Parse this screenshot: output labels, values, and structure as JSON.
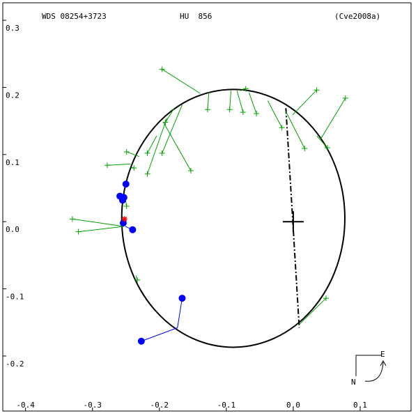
{
  "chart_data": {
    "type": "orbit",
    "title": "WDS 08254+3723",
    "subtitle": "HU  856",
    "reference": "(Cve2008a)",
    "compass": {
      "east": "E",
      "north": "N"
    },
    "xlim": [
      -0.434,
      0.176
    ],
    "ylim": [
      -0.282,
      0.326
    ],
    "xticks": [
      -0.4,
      -0.3,
      -0.2,
      -0.1,
      {
        "value": 0,
        "label": "0.0"
      },
      0.1
    ],
    "yticks": [
      0.3,
      0.2,
      0.1,
      {
        "value": 0,
        "label": "0.0"
      },
      -0.1,
      -0.2
    ],
    "orbit": {
      "cx": -0.0896,
      "cy": 0.005,
      "rx": 0.1667,
      "ry": 0.192,
      "color": "#000000"
    },
    "primary": {
      "x": 0,
      "y": 0
    },
    "node_line": {
      "x": [
        -0.011,
        0.009
      ],
      "y": [
        0.169,
        -0.158
      ]
    },
    "series": [
      {
        "marker": "plus",
        "color": "#00a000",
        "x": [
          -0.196,
          -0.128,
          -0.095,
          -0.071,
          -0.075,
          -0.055,
          -0.017,
          0.017,
          0.035,
          0.051,
          0.078,
          -0.153,
          -0.191,
          -0.196,
          -0.218,
          -0.218,
          -0.249,
          -0.238,
          -0.278,
          -0.249,
          -0.33,
          -0.321,
          -0.233,
          0.049
        ],
        "y": [
          0.227,
          0.167,
          0.167,
          0.198,
          0.163,
          0.161,
          0.14,
          0.109,
          0.196,
          0.11,
          0.184,
          0.076,
          0.148,
          0.102,
          0.071,
          0.102,
          0.104,
          0.08,
          0.084,
          0.023,
          0.004,
          -0.015,
          -0.087,
          -0.114
        ],
        "fit_x": [
          -0.139,
          -0.126,
          -0.093,
          -0.079,
          -0.084,
          -0.066,
          -0.038,
          -0.011,
          -0.001,
          0.035,
          0.041,
          -0.194,
          -0.178,
          -0.166,
          -0.189,
          -0.204,
          -0.23,
          -0.241,
          -0.243,
          -0.251,
          -0.253,
          -0.253,
          -0.235,
          0.009
        ],
        "fit_y": [
          0.191,
          0.193,
          0.195,
          0.195,
          0.195,
          0.192,
          0.18,
          0.164,
          0.159,
          0.128,
          0.123,
          0.148,
          0.169,
          0.174,
          0.154,
          0.128,
          0.097,
          0.081,
          0.086,
          0.034,
          -0.007,
          -0.007,
          -0.08,
          -0.153
        ]
      },
      {
        "marker": "dot",
        "color": "#0000ff",
        "x": [
          -0.25,
          -0.259,
          -0.255,
          -0.253,
          -0.254,
          -0.24,
          -0.166,
          -0.227
        ],
        "y": [
          0.056,
          0.038,
          0.032,
          0.036,
          -0.002,
          -0.012,
          -0.114,
          -0.178
        ],
        "fit_x": [
          -0.252,
          -0.255,
          -0.254,
          -0.253,
          -0.253,
          -0.251,
          -0.173,
          -0.173
        ],
        "fit_y": [
          0.05,
          0.036,
          0.031,
          0.036,
          -0.004,
          -0.007,
          -0.158,
          -0.158
        ]
      },
      {
        "marker": "star",
        "color": "#ff0000",
        "x": [
          -0.252
        ],
        "y": [
          0.004
        ],
        "fit_x": [
          -0.252
        ],
        "fit_y": [
          0.004
        ]
      }
    ]
  }
}
